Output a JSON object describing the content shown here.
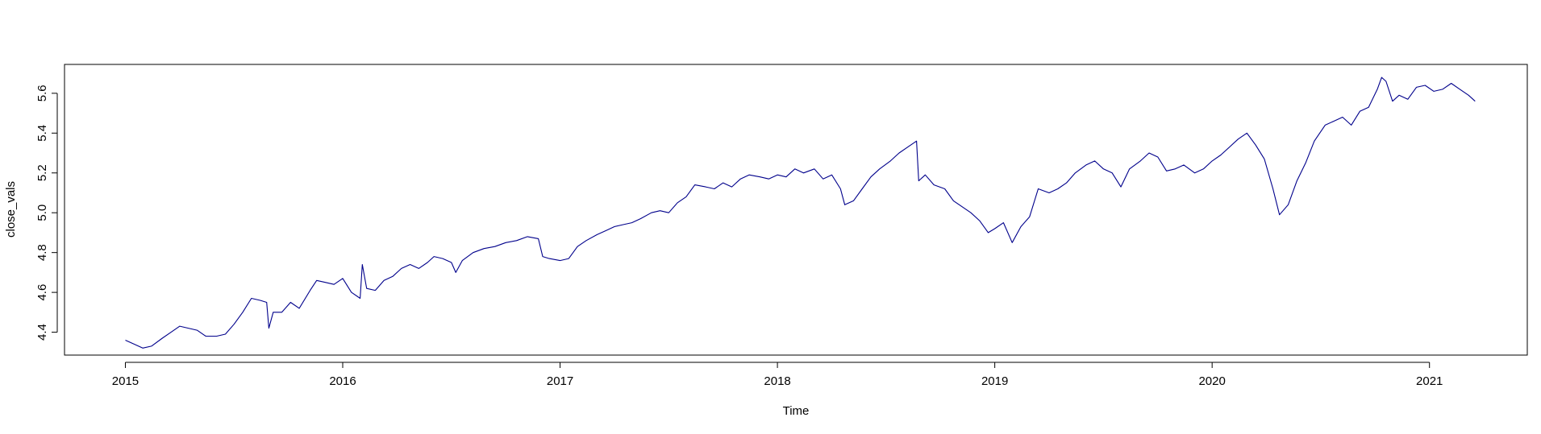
{
  "chart_data": {
    "type": "line",
    "title": "",
    "xlabel": "Time",
    "ylabel": "close_vals",
    "xlim": [
      2014.72,
      2021.45
    ],
    "ylim": [
      4.285,
      5.745
    ],
    "x_ticks": [
      {
        "value": 2015,
        "label": "2015"
      },
      {
        "value": 2016,
        "label": "2016"
      },
      {
        "value": 2017,
        "label": "2017"
      },
      {
        "value": 2018,
        "label": "2018"
      },
      {
        "value": 2019,
        "label": "2019"
      },
      {
        "value": 2020,
        "label": "2020"
      },
      {
        "value": 2021,
        "label": "2021"
      }
    ],
    "y_ticks": [
      {
        "value": 4.4,
        "label": "4.4"
      },
      {
        "value": 4.6,
        "label": "4.6"
      },
      {
        "value": 4.8,
        "label": "4.8"
      },
      {
        "value": 5.0,
        "label": "5.0"
      },
      {
        "value": 5.2,
        "label": "5.2"
      },
      {
        "value": 5.4,
        "label": "5.4"
      },
      {
        "value": 5.6,
        "label": "5.6"
      }
    ],
    "grid": false,
    "legend": "none",
    "line_color": "#00008B",
    "series": [
      {
        "values": [
          [
            2015.0,
            4.36
          ],
          [
            2015.04,
            4.34
          ],
          [
            2015.08,
            4.32
          ],
          [
            2015.12,
            4.33
          ],
          [
            2015.17,
            4.37
          ],
          [
            2015.21,
            4.4
          ],
          [
            2015.25,
            4.43
          ],
          [
            2015.29,
            4.42
          ],
          [
            2015.33,
            4.41
          ],
          [
            2015.37,
            4.38
          ],
          [
            2015.42,
            4.38
          ],
          [
            2015.46,
            4.39
          ],
          [
            2015.5,
            4.44
          ],
          [
            2015.54,
            4.5
          ],
          [
            2015.58,
            4.57
          ],
          [
            2015.62,
            4.56
          ],
          [
            2015.65,
            4.55
          ],
          [
            2015.66,
            4.42
          ],
          [
            2015.68,
            4.5
          ],
          [
            2015.72,
            4.5
          ],
          [
            2015.76,
            4.55
          ],
          [
            2015.8,
            4.52
          ],
          [
            2015.85,
            4.61
          ],
          [
            2015.88,
            4.66
          ],
          [
            2015.92,
            4.65
          ],
          [
            2015.96,
            4.64
          ],
          [
            2016.0,
            4.67
          ],
          [
            2016.04,
            4.6
          ],
          [
            2016.08,
            4.57
          ],
          [
            2016.09,
            4.74
          ],
          [
            2016.11,
            4.62
          ],
          [
            2016.15,
            4.61
          ],
          [
            2016.19,
            4.66
          ],
          [
            2016.23,
            4.68
          ],
          [
            2016.27,
            4.72
          ],
          [
            2016.31,
            4.74
          ],
          [
            2016.35,
            4.72
          ],
          [
            2016.39,
            4.75
          ],
          [
            2016.42,
            4.78
          ],
          [
            2016.46,
            4.77
          ],
          [
            2016.5,
            4.75
          ],
          [
            2016.52,
            4.7
          ],
          [
            2016.55,
            4.76
          ],
          [
            2016.6,
            4.8
          ],
          [
            2016.65,
            4.82
          ],
          [
            2016.7,
            4.83
          ],
          [
            2016.75,
            4.85
          ],
          [
            2016.8,
            4.86
          ],
          [
            2016.85,
            4.88
          ],
          [
            2016.9,
            4.87
          ],
          [
            2016.92,
            4.78
          ],
          [
            2016.95,
            4.77
          ],
          [
            2017.0,
            4.76
          ],
          [
            2017.04,
            4.77
          ],
          [
            2017.08,
            4.83
          ],
          [
            2017.12,
            4.86
          ],
          [
            2017.17,
            4.89
          ],
          [
            2017.21,
            4.91
          ],
          [
            2017.25,
            4.93
          ],
          [
            2017.29,
            4.94
          ],
          [
            2017.33,
            4.95
          ],
          [
            2017.37,
            4.97
          ],
          [
            2017.42,
            5.0
          ],
          [
            2017.46,
            5.01
          ],
          [
            2017.5,
            5.0
          ],
          [
            2017.54,
            5.05
          ],
          [
            2017.58,
            5.08
          ],
          [
            2017.62,
            5.14
          ],
          [
            2017.67,
            5.13
          ],
          [
            2017.71,
            5.12
          ],
          [
            2017.75,
            5.15
          ],
          [
            2017.79,
            5.13
          ],
          [
            2017.83,
            5.17
          ],
          [
            2017.87,
            5.19
          ],
          [
            2017.92,
            5.18
          ],
          [
            2017.96,
            5.17
          ],
          [
            2018.0,
            5.19
          ],
          [
            2018.04,
            5.18
          ],
          [
            2018.08,
            5.22
          ],
          [
            2018.12,
            5.2
          ],
          [
            2018.17,
            5.22
          ],
          [
            2018.21,
            5.17
          ],
          [
            2018.25,
            5.19
          ],
          [
            2018.29,
            5.12
          ],
          [
            2018.31,
            5.04
          ],
          [
            2018.35,
            5.06
          ],
          [
            2018.39,
            5.12
          ],
          [
            2018.43,
            5.18
          ],
          [
            2018.47,
            5.22
          ],
          [
            2018.52,
            5.26
          ],
          [
            2018.56,
            5.3
          ],
          [
            2018.6,
            5.33
          ],
          [
            2018.64,
            5.36
          ],
          [
            2018.65,
            5.16
          ],
          [
            2018.68,
            5.19
          ],
          [
            2018.72,
            5.14
          ],
          [
            2018.77,
            5.12
          ],
          [
            2018.81,
            5.06
          ],
          [
            2018.85,
            5.03
          ],
          [
            2018.89,
            5.0
          ],
          [
            2018.93,
            4.96
          ],
          [
            2018.97,
            4.9
          ],
          [
            2019.0,
            4.92
          ],
          [
            2019.04,
            4.95
          ],
          [
            2019.08,
            4.85
          ],
          [
            2019.12,
            4.93
          ],
          [
            2019.16,
            4.98
          ],
          [
            2019.2,
            5.12
          ],
          [
            2019.25,
            5.1
          ],
          [
            2019.29,
            5.12
          ],
          [
            2019.33,
            5.15
          ],
          [
            2019.37,
            5.2
          ],
          [
            2019.42,
            5.24
          ],
          [
            2019.46,
            5.26
          ],
          [
            2019.5,
            5.22
          ],
          [
            2019.54,
            5.2
          ],
          [
            2019.58,
            5.13
          ],
          [
            2019.62,
            5.22
          ],
          [
            2019.67,
            5.26
          ],
          [
            2019.71,
            5.3
          ],
          [
            2019.75,
            5.28
          ],
          [
            2019.79,
            5.21
          ],
          [
            2019.83,
            5.22
          ],
          [
            2019.87,
            5.24
          ],
          [
            2019.92,
            5.2
          ],
          [
            2019.96,
            5.22
          ],
          [
            2020.0,
            5.26
          ],
          [
            2020.04,
            5.29
          ],
          [
            2020.08,
            5.33
          ],
          [
            2020.12,
            5.37
          ],
          [
            2020.16,
            5.4
          ],
          [
            2020.2,
            5.34
          ],
          [
            2020.24,
            5.27
          ],
          [
            2020.28,
            5.12
          ],
          [
            2020.31,
            4.99
          ],
          [
            2020.35,
            5.04
          ],
          [
            2020.39,
            5.16
          ],
          [
            2020.43,
            5.25
          ],
          [
            2020.47,
            5.36
          ],
          [
            2020.52,
            5.44
          ],
          [
            2020.56,
            5.46
          ],
          [
            2020.6,
            5.48
          ],
          [
            2020.64,
            5.44
          ],
          [
            2020.68,
            5.51
          ],
          [
            2020.72,
            5.53
          ],
          [
            2020.76,
            5.62
          ],
          [
            2020.78,
            5.68
          ],
          [
            2020.8,
            5.66
          ],
          [
            2020.83,
            5.56
          ],
          [
            2020.86,
            5.59
          ],
          [
            2020.9,
            5.57
          ],
          [
            2020.94,
            5.63
          ],
          [
            2020.98,
            5.64
          ],
          [
            2021.02,
            5.61
          ],
          [
            2021.06,
            5.62
          ],
          [
            2021.1,
            5.65
          ],
          [
            2021.14,
            5.62
          ],
          [
            2021.18,
            5.59
          ],
          [
            2021.21,
            5.56
          ]
        ]
      }
    ]
  }
}
